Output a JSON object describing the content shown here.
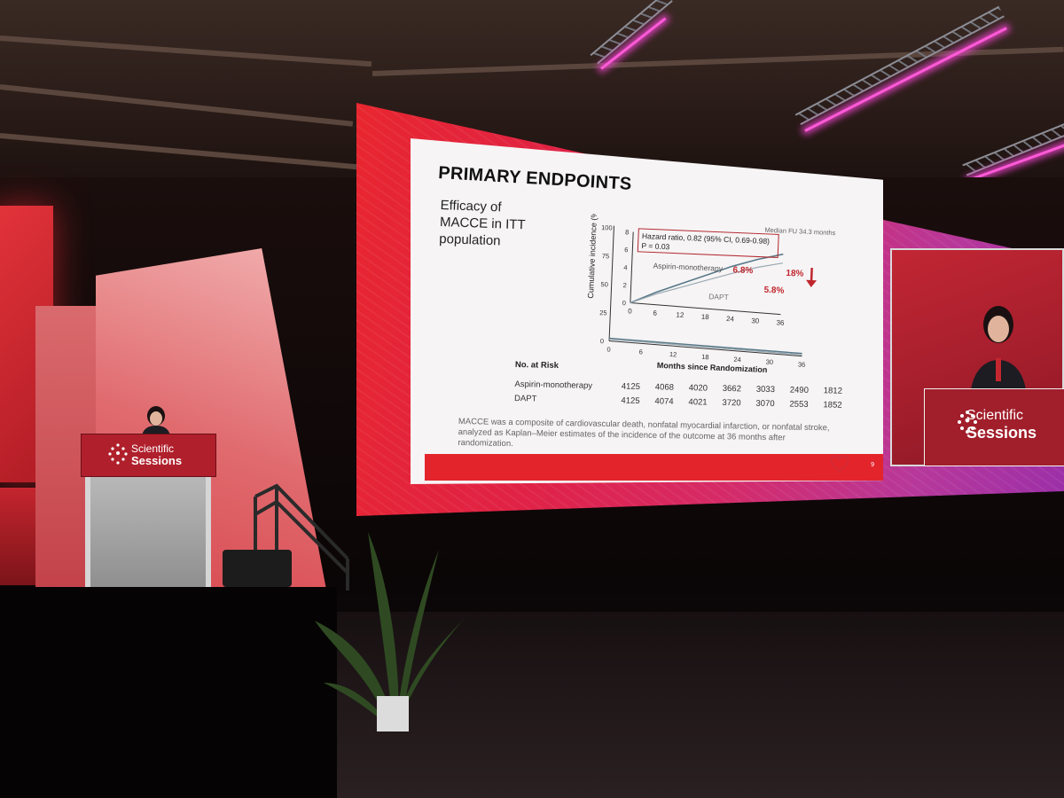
{
  "slide": {
    "title": "PRIMARY ENDPOINTS",
    "subtitle": "Efficacy of MACCE in ITT population",
    "median_fu": "Median FU 34.3 months",
    "hazard_ratio": "Hazard ratio, 0.82 (95% CI, 0.69-0.98)",
    "p_value": "P = 0.03",
    "series_aspirin_label": "Aspirin-monotherapy",
    "series_aspirin_value": "6.8%",
    "series_dapt_label": "DAPT",
    "series_dapt_value": "5.8%",
    "reduction": "18%",
    "y_axis_label": "Cumulative incidence (%)",
    "x_axis_label": "Months since Randomization",
    "outer_y_ticks": [
      "100",
      "75",
      "50",
      "25",
      "0"
    ],
    "inset_y_ticks": [
      "8",
      "6",
      "4",
      "2",
      "0"
    ],
    "inset_x_ticks": [
      "0",
      "6",
      "12",
      "18",
      "24",
      "30",
      "36"
    ],
    "outer_x_ticks": [
      "0",
      "6",
      "12",
      "18",
      "24",
      "30",
      "36"
    ],
    "risk_table": {
      "header": "No. at Risk",
      "rows": [
        {
          "label": "Aspirin-monotherapy",
          "values": [
            "4125",
            "4068",
            "4020",
            "3662",
            "3033",
            "2490",
            "1812"
          ]
        },
        {
          "label": "DAPT",
          "values": [
            "4125",
            "4074",
            "4021",
            "3720",
            "3070",
            "2553",
            "1852"
          ]
        }
      ]
    },
    "footnote": "MACCE was a composite of cardiovascular death, nonfatal myocardial infarction, or nonfatal stroke, analyzed as Kaplan–Meier estimates of the incidence of the outcome at 36 months after randomization.",
    "page_number": "9",
    "colors": {
      "accent": "#e3242b",
      "aspirin": "#5a7a8a",
      "dapt": "#9aa9b2"
    }
  },
  "branding": {
    "line1": "Scientific",
    "line2": "Sessions"
  },
  "chart_data": {
    "type": "line",
    "x": [
      0,
      6,
      12,
      18,
      24,
      30,
      36
    ],
    "series": [
      {
        "name": "Aspirin-monotherapy",
        "values": [
          0,
          1.4,
          2.6,
          3.8,
          5.0,
          6.0,
          6.8
        ]
      },
      {
        "name": "DAPT",
        "values": [
          0,
          1.2,
          2.2,
          3.2,
          4.2,
          5.1,
          5.8
        ]
      }
    ],
    "title": "PRIMARY ENDPOINTS",
    "xlabel": "Months since Randomization",
    "ylabel": "Cumulative incidence (%)",
    "ylim": [
      0,
      8
    ],
    "xlim": [
      0,
      36
    ]
  }
}
